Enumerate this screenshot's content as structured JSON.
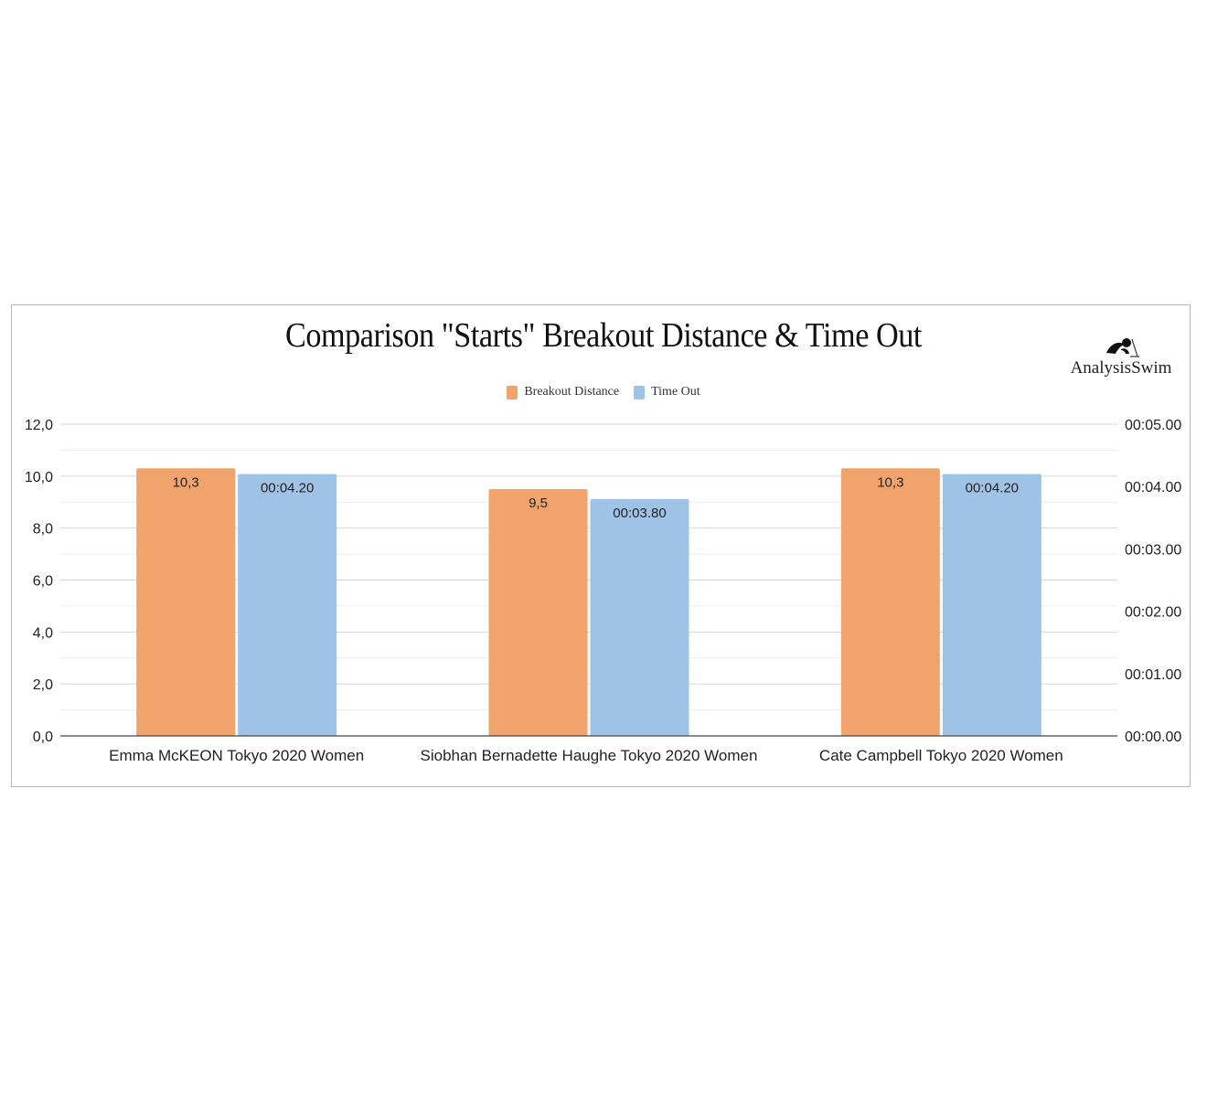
{
  "chart_data": {
    "type": "bar",
    "title": "Comparison \"Starts\" Breakout Distance & Time Out",
    "categories": [
      "Emma McKEON Tokyo 2020 Women",
      "Siobhan Bernadette Haughe Tokyo 2020 Women",
      "Cate Campbell Tokyo 2020 Women"
    ],
    "series": [
      {
        "name": "Breakout Distance",
        "axis": "left",
        "color": "#f0a46c",
        "values": [
          10.3,
          9.5,
          10.3
        ],
        "labels": [
          "10,3",
          "9,5",
          "10,3"
        ]
      },
      {
        "name": "Time Out",
        "axis": "right",
        "color": "#9fc3e7",
        "values": [
          4.2,
          3.8,
          4.2
        ],
        "labels": [
          "00:04.20",
          "00:03.80",
          "00:04.20"
        ]
      }
    ],
    "y_left": {
      "range": [
        0,
        12
      ],
      "ticks": [
        0,
        2,
        4,
        6,
        8,
        10,
        12
      ],
      "tick_labels": [
        "0,0",
        "2,0",
        "4,0",
        "6,0",
        "8,0",
        "10,0",
        "12,0"
      ]
    },
    "y_right": {
      "range": [
        0,
        5
      ],
      "ticks": [
        0,
        1,
        2,
        3,
        4,
        5
      ],
      "tick_labels": [
        "00:00.00",
        "00:01.00",
        "00:02.00",
        "00:03.00",
        "00:04.00",
        "00:05.00"
      ]
    },
    "grid": true,
    "legend_position": "top"
  },
  "logo": {
    "text": "AnalysisSwim",
    "icon": "swimmer-icon"
  }
}
